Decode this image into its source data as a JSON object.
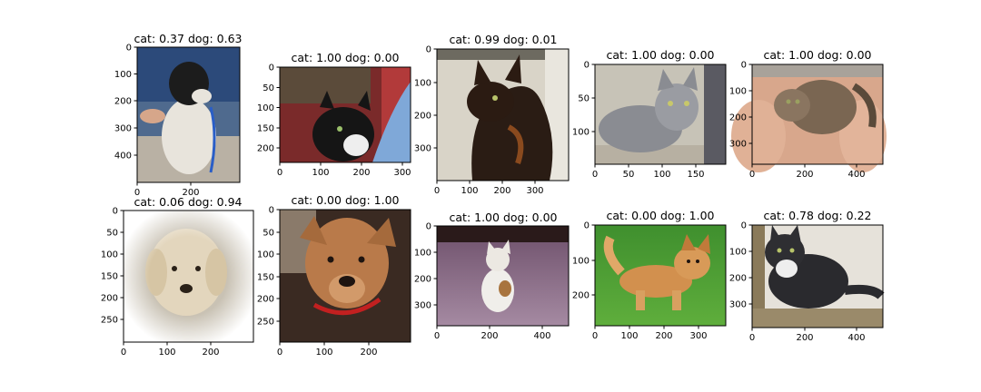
{
  "figure": {
    "panels": [
      {
        "title": "cat: 0.37  dog: 0.63",
        "label": "dog",
        "xticks": [
          "0",
          "200"
        ],
        "yticks": [
          "0",
          "100",
          "200",
          "300",
          "400"
        ]
      },
      {
        "title": "cat: 1.00  dog: 0.00",
        "label": "cat",
        "xticks": [
          "0",
          "100",
          "200",
          "300"
        ],
        "yticks": [
          "0",
          "50",
          "100",
          "150",
          "200"
        ]
      },
      {
        "title": "cat: 0.99  dog: 0.01",
        "label": "cat",
        "xticks": [
          "0",
          "100",
          "200",
          "300"
        ],
        "yticks": [
          "0",
          "100",
          "200",
          "300"
        ]
      },
      {
        "title": "cat: 1.00  dog: 0.00",
        "label": "cat",
        "xticks": [
          "0",
          "50",
          "100",
          "150"
        ],
        "yticks": [
          "0",
          "50",
          "100"
        ]
      },
      {
        "title": "cat: 1.00  dog: 0.00",
        "label": "cat",
        "xticks": [
          "0",
          "200",
          "400"
        ],
        "yticks": [
          "0",
          "100",
          "200",
          "300"
        ]
      },
      {
        "title": "cat: 0.06  dog: 0.94",
        "label": "dog",
        "xticks": [
          "0",
          "100",
          "200"
        ],
        "yticks": [
          "0",
          "50",
          "100",
          "150",
          "200",
          "250"
        ]
      },
      {
        "title": "cat: 0.00  dog: 1.00",
        "label": "dog",
        "xticks": [
          "0",
          "100",
          "200"
        ],
        "yticks": [
          "0",
          "50",
          "100",
          "150",
          "200",
          "250"
        ]
      },
      {
        "title": "cat: 1.00  dog: 0.00",
        "label": "cat",
        "xticks": [
          "0",
          "200",
          "400"
        ],
        "yticks": [
          "0",
          "100",
          "200",
          "300"
        ]
      },
      {
        "title": "cat: 0.00  dog: 1.00",
        "label": "dog",
        "xticks": [
          "0",
          "100",
          "200",
          "300"
        ],
        "yticks": [
          "0",
          "100",
          "200"
        ]
      },
      {
        "title": "cat: 0.78  dog: 0.22",
        "label": "cat",
        "xticks": [
          "0",
          "200",
          "400"
        ],
        "yticks": [
          "0",
          "100",
          "200",
          "300"
        ]
      }
    ]
  }
}
